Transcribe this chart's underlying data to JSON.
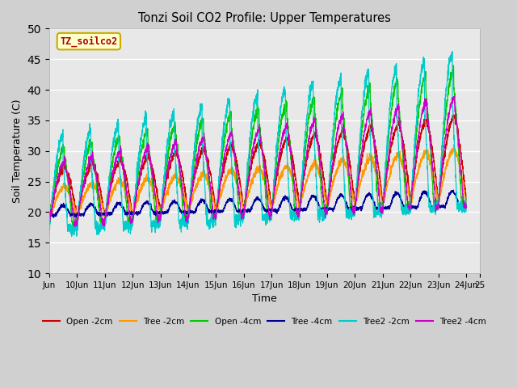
{
  "title": "Tonzi Soil CO2 Profile: Upper Temperatures",
  "xlabel": "Time",
  "ylabel": "Soil Temperature (C)",
  "ylim": [
    10,
    50
  ],
  "xlim": [
    0,
    15.5
  ],
  "fig_bg_color": "#d0d0d0",
  "plot_bg_color": "#e8e8e8",
  "subtitle_box": "TZ_soilco2",
  "subtitle_box_bg": "#ffffcc",
  "subtitle_box_edge": "#ccaa00",
  "subtitle_text_color": "#aa0000",
  "xtick_labels": [
    "Jun",
    "10Jun",
    "11Jun",
    "12Jun",
    "13Jun",
    "14Jun",
    "15Jun",
    "16Jun",
    "17Jun",
    "18Jun",
    "19Jun",
    "20Jun",
    "21Jun",
    "22Jun",
    "23Jun",
    "24Jun",
    "25"
  ],
  "xtick_positions": [
    0,
    1,
    2,
    3,
    4,
    5,
    6,
    7,
    8,
    9,
    10,
    11,
    12,
    13,
    14,
    15,
    15.5
  ],
  "series_colors": {
    "Open -2cm": "#cc0000",
    "Tree -2cm": "#ff9900",
    "Open -4cm": "#00cc00",
    "Tree -4cm": "#000099",
    "Tree2 -2cm": "#00cccc",
    "Tree2 -4cm": "#cc00cc"
  },
  "legend_entries": [
    "Open -2cm",
    "Tree -2cm",
    "Open -4cm",
    "Tree -4cm",
    "Tree2 -2cm",
    "Tree2 -4cm"
  ]
}
